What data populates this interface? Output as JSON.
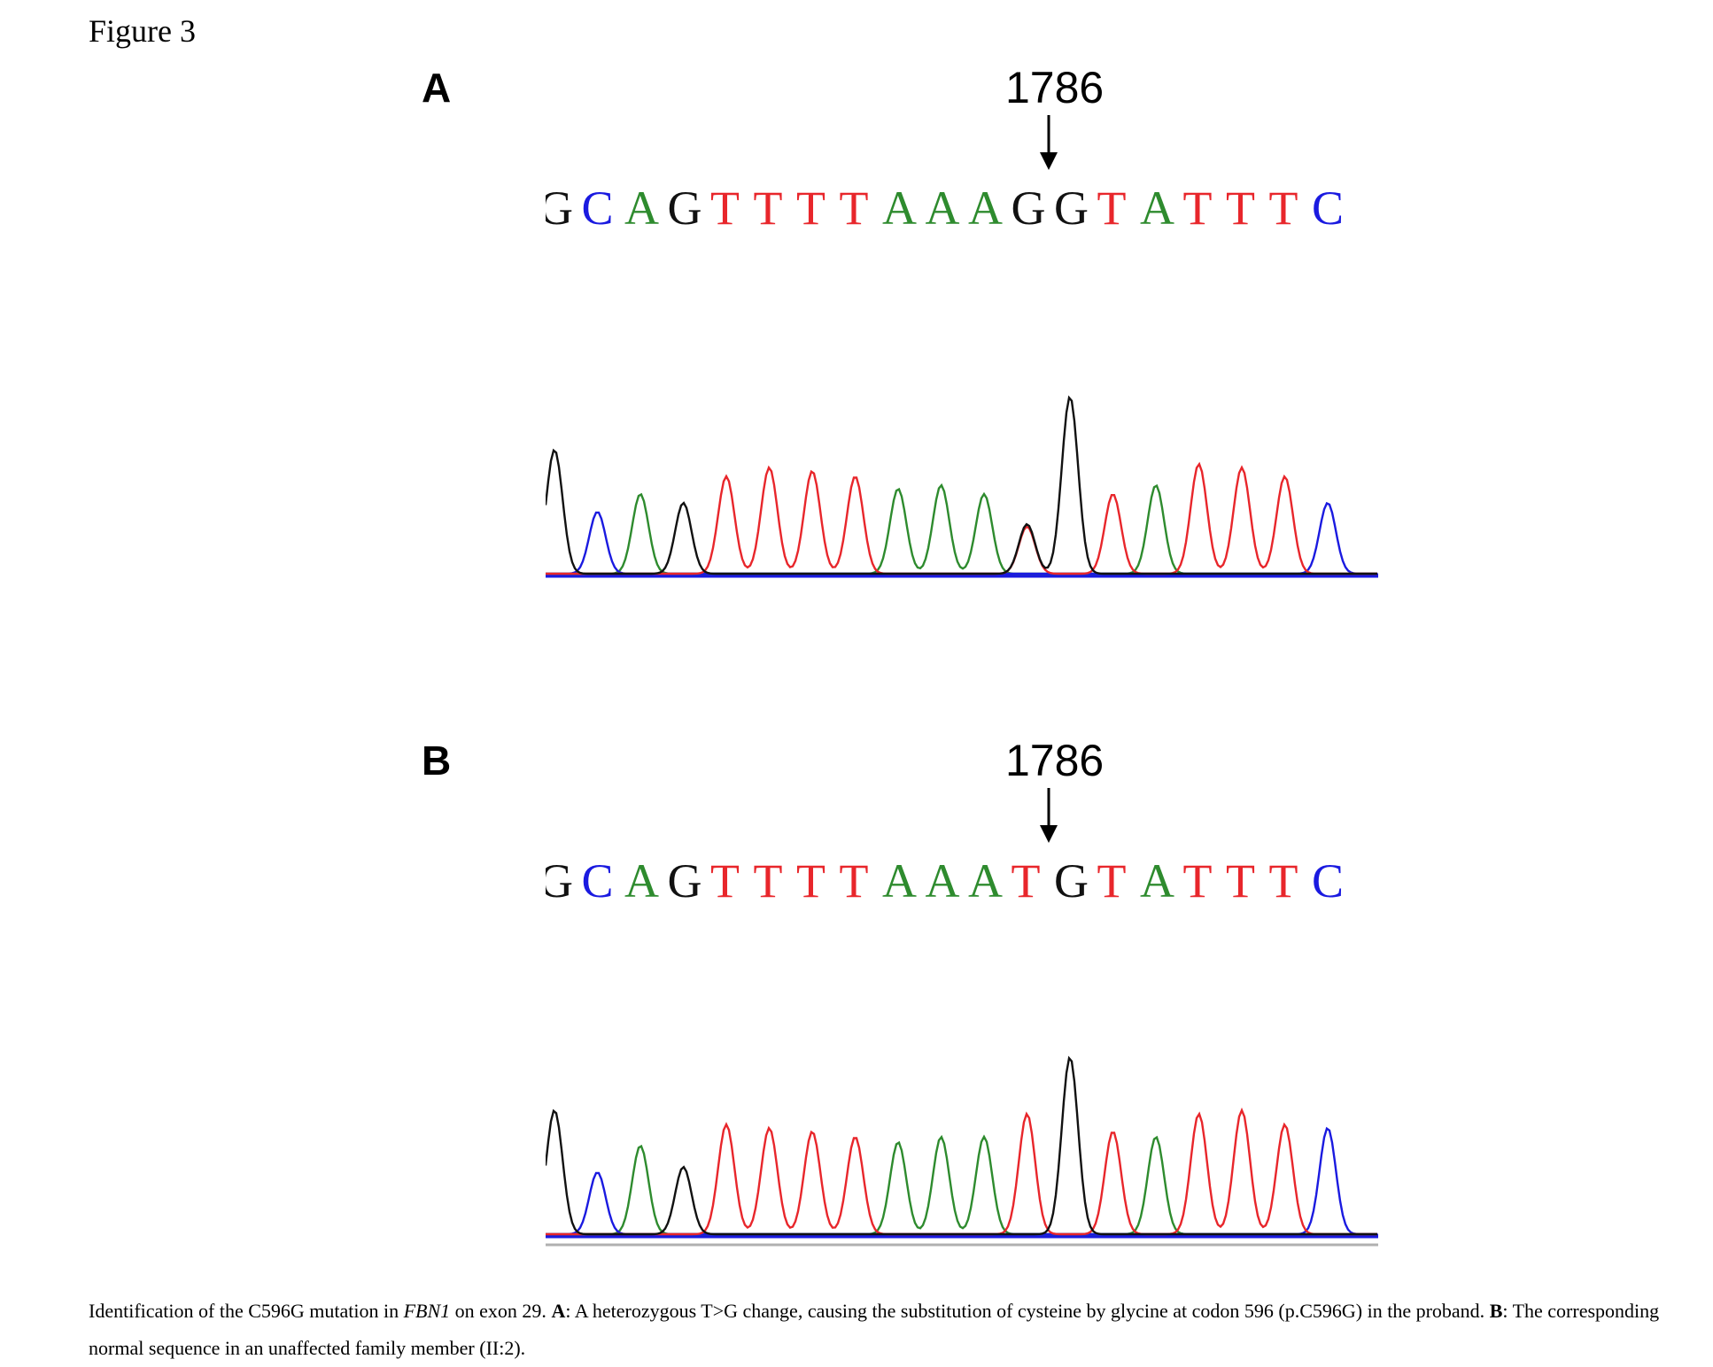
{
  "figure_title": "Figure 3",
  "colors": {
    "A": "#2e8b2e",
    "C": "#1a1ae0",
    "G": "#111111",
    "T": "#e8262b"
  },
  "panels": [
    {
      "letter": "A",
      "position_label": "1786",
      "arrow_icon": "down-arrow-icon",
      "sequence": [
        "G",
        "C",
        "A",
        "G",
        "T",
        "T",
        "T",
        "T",
        "A",
        "A",
        "A",
        "G",
        "G",
        "T",
        "A",
        "T",
        "T",
        "T",
        "C"
      ],
      "trace_bases": [
        "G",
        "C",
        "A",
        "G",
        "T",
        "T",
        "T",
        "T",
        "A",
        "A",
        "A",
        "G",
        "G",
        "T",
        "A",
        "T",
        "T",
        "T",
        "C"
      ],
      "heterozygous_index": 11,
      "heterozygous_secondary": "T"
    },
    {
      "letter": "B",
      "position_label": "1786",
      "arrow_icon": "down-arrow-icon",
      "sequence": [
        "G",
        "C",
        "A",
        "G",
        "T",
        "T",
        "T",
        "T",
        "A",
        "A",
        "A",
        "T",
        "G",
        "T",
        "A",
        "T",
        "T",
        "T",
        "C"
      ],
      "trace_bases": [
        "G",
        "C",
        "A",
        "G",
        "T",
        "T",
        "T",
        "T",
        "A",
        "A",
        "A",
        "T",
        "G",
        "T",
        "A",
        "T",
        "T",
        "T",
        "C"
      ],
      "heterozygous_index": -1,
      "heterozygous_secondary": ""
    }
  ],
  "caption": {
    "part1": "Identification of the C596G mutation in ",
    "gene": "FBN1",
    "part2": " on exon 29. ",
    "label_a": "A",
    "text_a": ": A heterozygous T>G change, causing the substitution of cysteine by glycine at codon 596 (p.C596G) in the proband. ",
    "label_b": "B",
    "text_b": ": The corresponding normal sequence in an unaffected family member (II:2)."
  }
}
